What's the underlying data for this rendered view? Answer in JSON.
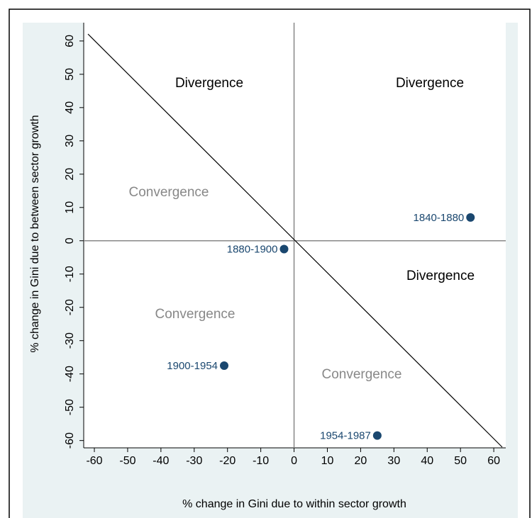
{
  "chart_data": {
    "type": "scatter",
    "x_label": "% change in Gini due to within sector growth",
    "y_label": "% change in Gini due to between sector growth",
    "series": [
      {
        "color": "#1a476f",
        "x": [
          53,
          -3,
          -21,
          25
        ],
        "values": [
          7,
          -2.5,
          -37.5,
          -58.5
        ],
        "labels": [
          "1840-1880",
          "1880-1900",
          "1900-1954",
          "1954-1987"
        ]
      }
    ],
    "annotations": [
      "Divergence",
      "Divergence",
      "Divergence",
      "Convergence",
      "Convergence",
      "Convergence"
    ],
    "xlim": [
      -63.2,
      63.6
    ],
    "ylim": [
      -62.2,
      65.5
    ],
    "xticks": [
      -60,
      -50,
      -40,
      -30,
      -20,
      -10,
      0,
      10,
      20,
      30,
      40,
      50,
      60
    ],
    "yticks": [
      -60,
      -50,
      -40,
      -30,
      -20,
      -10,
      0,
      10,
      20,
      30,
      40,
      50,
      60
    ]
  }
}
